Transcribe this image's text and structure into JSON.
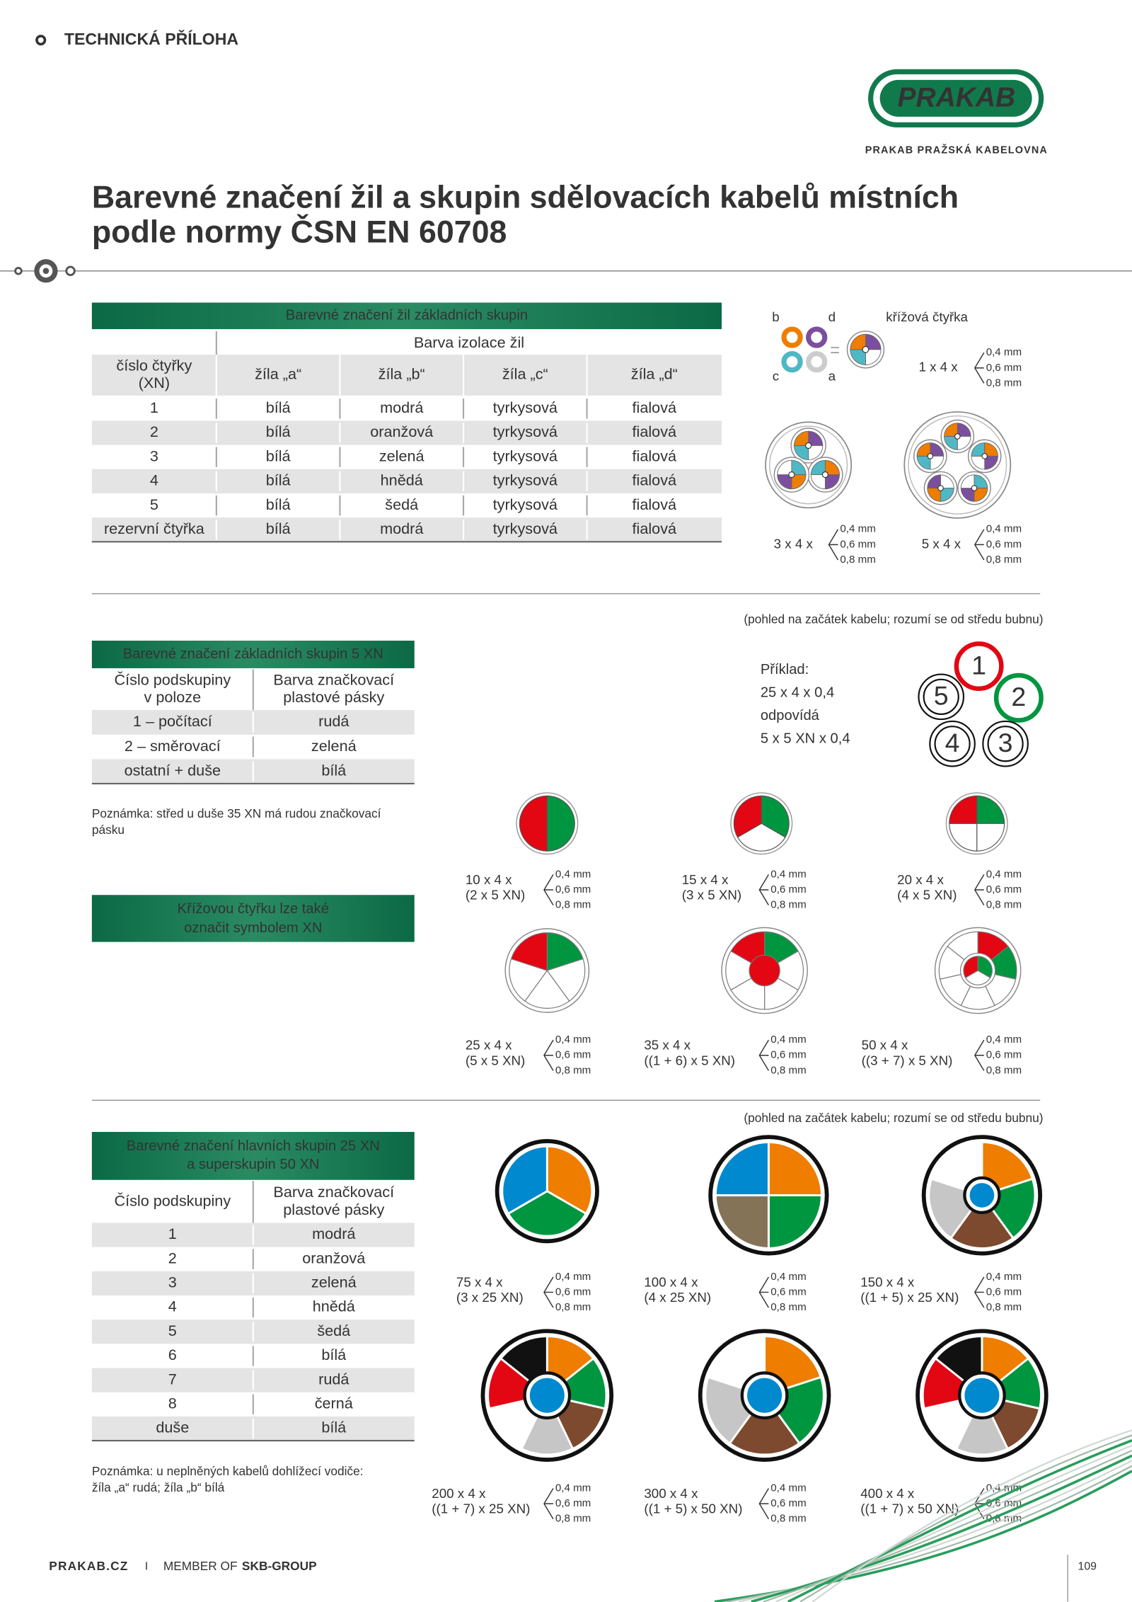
{
  "header": {
    "section": "TECHNICKÁ PŘÍLOHA",
    "logo": "PRAKAB",
    "company": "PRAKAB PRAŽSKÁ KABELOVNA"
  },
  "title": [
    "Barevné značení žil a skupin sdělovacích kabelů místních",
    "podle normy ČSN EN 60708"
  ],
  "sizes": [
    "0,4 mm",
    "0,6 mm",
    "0,8 mm"
  ],
  "view_note": "(pohled na začátek kabelu; rozumí se od středu bubnu)",
  "table1": {
    "title": "Barevné značení žil základních skupin",
    "group_header": "Barva izolace žil",
    "columns": [
      [
        "číslo čtyřky",
        "(XN)"
      ],
      [
        "žíla „a“"
      ],
      [
        "žíla „b“"
      ],
      [
        "žíla „c“"
      ],
      [
        "žíla „d“"
      ]
    ],
    "rows": [
      [
        "1",
        "bílá",
        "modrá",
        "tyrkysová",
        "fialová"
      ],
      [
        "2",
        "bílá",
        "oranžová",
        "tyrkysová",
        "fialová"
      ],
      [
        "3",
        "bílá",
        "zelená",
        "tyrkysová",
        "fialová"
      ],
      [
        "4",
        "bílá",
        "hnědá",
        "tyrkysová",
        "fialová"
      ],
      [
        "5",
        "bílá",
        "šedá",
        "tyrkysová",
        "fialová"
      ],
      [
        "rezervní čtyřka",
        "bílá",
        "modrá",
        "tyrkysová",
        "fialová"
      ]
    ]
  },
  "quad": {
    "labels": [
      "b",
      "d",
      "c",
      "a"
    ],
    "name": "křížová čtyřka",
    "cables": [
      "1 x 4 x",
      "3 x 4 x",
      "5 x 4 x"
    ]
  },
  "table2": {
    "title": "Barevné značení základních skupin 5 XN",
    "columns": [
      [
        "Číslo podskupiny",
        "v poloze"
      ],
      [
        "Barva značkovací",
        "plastové pásky"
      ]
    ],
    "rows": [
      [
        "1 – počítací",
        "rudá"
      ],
      [
        "2 – směrovací",
        "zelená"
      ],
      [
        "ostatní + duše",
        "bílá"
      ]
    ]
  },
  "example": {
    "lines": [
      "Příklad:",
      "25 x 4 x 0,4",
      "odpovídá",
      "5 x 5 XN x 0,4"
    ],
    "groups": [
      "1",
      "2",
      "3",
      "4",
      "5"
    ]
  },
  "note2": [
    "Poznámka: střed u duše 35 XN má rudou značkovací",
    "pásku"
  ],
  "banner": [
    "Křížovou čtyřku lze také",
    "označit symbolem XN"
  ],
  "cables2": [
    [
      "10 x 4 x",
      "(2 x 5 XN)"
    ],
    [
      "15 x 4 x",
      "(3 x 5 XN)"
    ],
    [
      "20 x 4 x",
      "(4 x 5 XN)"
    ],
    [
      "25 x 4 x",
      "(5 x 5 XN)"
    ],
    [
      "35 x 4 x",
      "((1 + 6) x 5 XN)"
    ],
    [
      "50 x 4 x",
      "((3 + 7) x 5 XN)"
    ]
  ],
  "table3": {
    "title": [
      "Barevné značení hlavních skupin 25 XN",
      "a superskupin 50 XN"
    ],
    "columns": [
      [
        "Číslo podskupiny"
      ],
      [
        "Barva značkovací",
        "plastové pásky"
      ]
    ],
    "rows": [
      [
        "1",
        "modrá"
      ],
      [
        "2",
        "oranžová"
      ],
      [
        "3",
        "zelená"
      ],
      [
        "4",
        "hnědá"
      ],
      [
        "5",
        "šedá"
      ],
      [
        "6",
        "bílá"
      ],
      [
        "7",
        "rudá"
      ],
      [
        "8",
        "černá"
      ],
      [
        "duše",
        "bílá"
      ]
    ]
  },
  "note3": [
    "Poznámka: u neplněných kabelů dohlížecí vodiče:",
    "žíla „a“ rudá; žíla „b“ bílá"
  ],
  "cables3": [
    [
      "75 x 4 x",
      "(3 x 25 XN)"
    ],
    [
      "100 x 4 x",
      "(4 x 25 XN)"
    ],
    [
      "150 x 4 x",
      "((1 + 5) x 25 XN)"
    ],
    [
      "200 x 4 x",
      "((1 + 7) x 25 XN)"
    ],
    [
      "300 x 4 x",
      "((1 + 5) x 50 XN)"
    ],
    [
      "400 x 4 x",
      "((1 + 7) x 50 XN)"
    ]
  ],
  "footer": {
    "site": "PRAKAB.CZ",
    "separator": "I",
    "member": "MEMBER OF",
    "group": "SKB-GROUP",
    "page": "109"
  }
}
